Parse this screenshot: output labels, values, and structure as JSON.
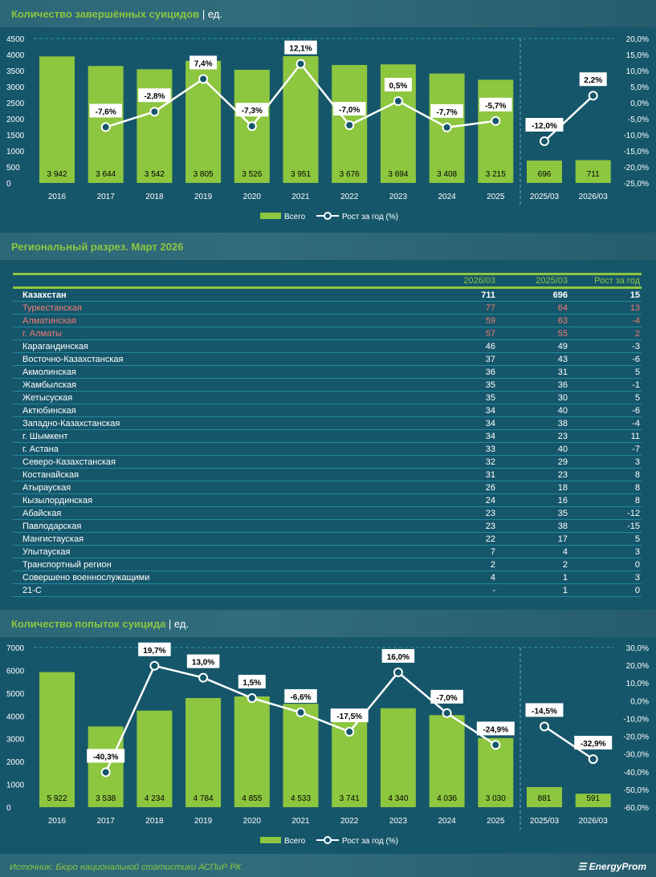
{
  "colors": {
    "bar": "#8dc63f",
    "line": "#ffffff",
    "background": "#16566a",
    "accent": "#8dc63f",
    "highlight": "#f07b74"
  },
  "chart_data": [
    {
      "type": "bar",
      "title": "Количество завершённых суицидов",
      "unit": "ед.",
      "categories": [
        "2016",
        "2017",
        "2018",
        "2019",
        "2020",
        "2021",
        "2022",
        "2023",
        "2024",
        "2025",
        "2025/03",
        "2026/03"
      ],
      "series": [
        {
          "name": "Всего",
          "type": "bar",
          "values": [
            3942,
            3644,
            3542,
            3805,
            3526,
            3951,
            3676,
            3694,
            3408,
            3215,
            696,
            711
          ],
          "labels": [
            "3 942",
            "3 644",
            "3 542",
            "3 805",
            "3 526",
            "3 951",
            "3 676",
            "3 694",
            "3 408",
            "3 215",
            "696",
            "711"
          ]
        },
        {
          "name": "Рост за год (%)",
          "type": "line",
          "values": [
            null,
            -7.6,
            -2.8,
            7.4,
            -7.3,
            12.1,
            -7.0,
            0.5,
            -7.7,
            -5.7,
            -12.0,
            2.2
          ],
          "labels": [
            "",
            "-7,6%",
            "-2,8%",
            "7,4%",
            "-7,3%",
            "12,1%",
            "-7,0%",
            "0,5%",
            "-7,7%",
            "-5,7%",
            "-12,0%",
            "2,2%"
          ]
        }
      ],
      "ylim": [
        0,
        4500
      ],
      "yticks": [
        "0",
        "500",
        "1000",
        "1500",
        "2000",
        "2500",
        "3000",
        "3500",
        "4000",
        "4500"
      ],
      "y2lim": [
        -25,
        20
      ],
      "y2ticks": [
        "-25,0%",
        "-20,0%",
        "-15,0%",
        "-10,0%",
        "-5,0%",
        "0,0%",
        "5,0%",
        "10,0%",
        "15,0%",
        "20,0%"
      ],
      "legend": "bottom-center"
    },
    {
      "type": "bar",
      "title": "Количество попыток суицида",
      "unit": "ед.",
      "categories": [
        "2016",
        "2017",
        "2018",
        "2019",
        "2020",
        "2021",
        "2022",
        "2023",
        "2024",
        "2025",
        "2025/03",
        "2026/03"
      ],
      "series": [
        {
          "name": "Всего",
          "type": "bar",
          "values": [
            5922,
            3538,
            4234,
            4784,
            4855,
            4533,
            3741,
            4340,
            4036,
            3030,
            881,
            591
          ],
          "labels": [
            "5 922",
            "3 538",
            "4 234",
            "4 784",
            "4 855",
            "4 533",
            "3 741",
            "4 340",
            "4 036",
            "3 030",
            "881",
            "591"
          ]
        },
        {
          "name": "Рост за год (%)",
          "type": "line",
          "values": [
            null,
            -40.3,
            19.7,
            13.0,
            1.5,
            -6.6,
            -17.5,
            16.0,
            -7.0,
            -24.9,
            -14.5,
            -32.9
          ],
          "labels": [
            "",
            "-40,3%",
            "19,7%",
            "13,0%",
            "1,5%",
            "-6,6%",
            "-17,5%",
            "16,0%",
            "-7,0%",
            "-24,9%",
            "-14,5%",
            "-32,9%"
          ]
        }
      ],
      "ylim": [
        0,
        7000
      ],
      "yticks": [
        "0",
        "1000",
        "2000",
        "3000",
        "4000",
        "5000",
        "6000",
        "7000"
      ],
      "y2lim": [
        -60,
        30
      ],
      "y2ticks": [
        "-60,0%",
        "-50,0%",
        "-40,0%",
        "-30,0%",
        "-20,0%",
        "-10,0%",
        "0,0%",
        "10,0%",
        "20,0%",
        "30,0%"
      ],
      "legend": "bottom-center"
    }
  ],
  "table": {
    "title": "Региональный разрез. Март 2026",
    "headers": [
      "",
      "2026/03",
      "2025/03",
      "Рост за год"
    ],
    "rows": [
      [
        "Казахстан",
        "711",
        "696",
        "15"
      ],
      [
        "Туркестанская",
        "77",
        "64",
        "13"
      ],
      [
        "Алматинская",
        "59",
        "63",
        "-4"
      ],
      [
        "г. Алматы",
        "57",
        "55",
        "2"
      ],
      [
        "Карагандинская",
        "46",
        "49",
        "-3"
      ],
      [
        "Восточно-Казахстанская",
        "37",
        "43",
        "-6"
      ],
      [
        "Акмолинская",
        "36",
        "31",
        "5"
      ],
      [
        "Жамбылская",
        "35",
        "36",
        "-1"
      ],
      [
        "Жетысуская",
        "35",
        "30",
        "5"
      ],
      [
        "Актюбинская",
        "34",
        "40",
        "-6"
      ],
      [
        "Западно-Казахстанская",
        "34",
        "38",
        "-4"
      ],
      [
        "г. Шымкент",
        "34",
        "23",
        "11"
      ],
      [
        "г. Астана",
        "33",
        "40",
        "-7"
      ],
      [
        "Северо-Казахстанская",
        "32",
        "29",
        "3"
      ],
      [
        "Костанайская",
        "31",
        "23",
        "8"
      ],
      [
        "Атырауская",
        "26",
        "18",
        "8"
      ],
      [
        "Кызылординская",
        "24",
        "16",
        "8"
      ],
      [
        "Абайская",
        "23",
        "35",
        "-12"
      ],
      [
        "Павлодарская",
        "23",
        "38",
        "-15"
      ],
      [
        "Мангистауская",
        "22",
        "17",
        "5"
      ],
      [
        "Улытауская",
        "7",
        "4",
        "3"
      ],
      [
        "Транспортный регион",
        "2",
        "2",
        "0"
      ],
      [
        "Совершено военнослужащими",
        "4",
        "1",
        "3"
      ],
      [
        "21-С",
        "-",
        "1",
        "0"
      ]
    ]
  },
  "footer": {
    "source": "Источник: Бюро национальной статистики АСПиР РК",
    "logo": "EnergyProm"
  }
}
